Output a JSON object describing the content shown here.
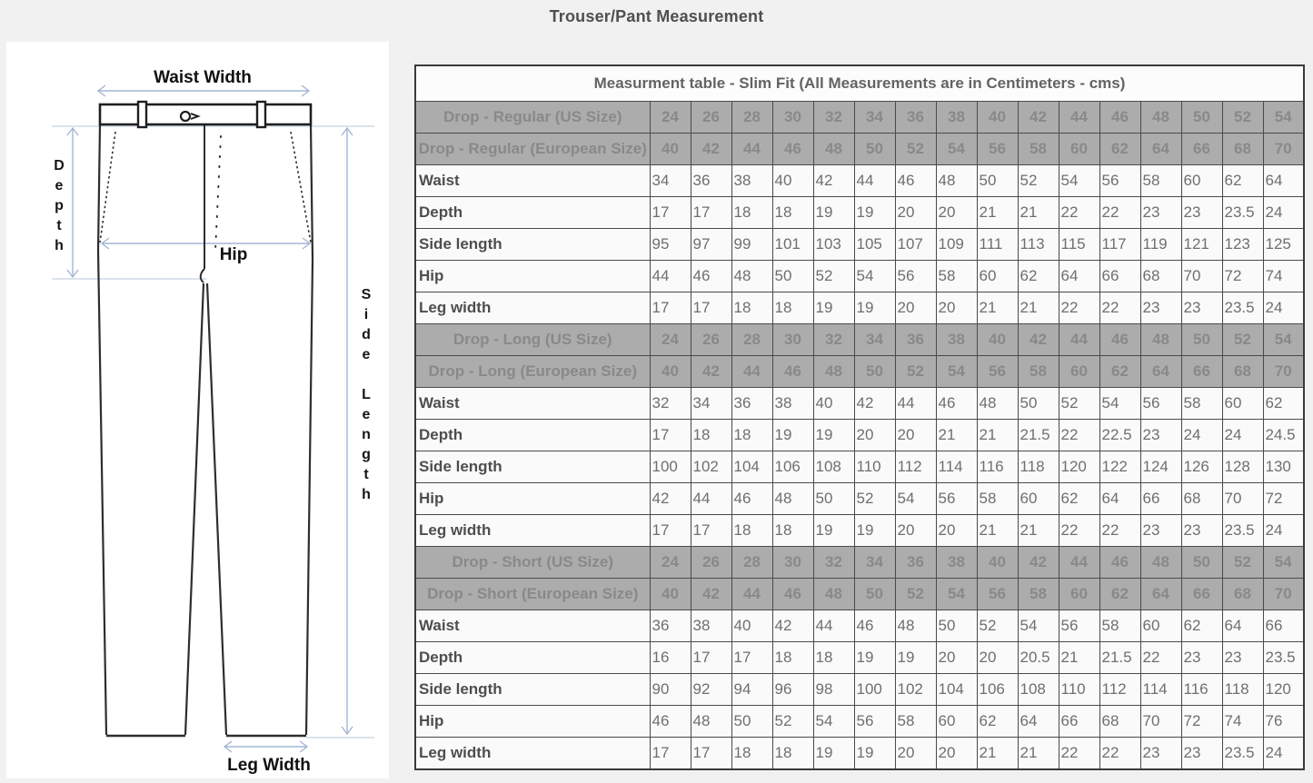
{
  "page": {
    "title": "Trouser/Pant Measurement"
  },
  "diagram": {
    "labels": {
      "waist_width": "Waist Width",
      "depth": "Depth",
      "hip": "Hip",
      "side_length": "Side Length",
      "leg_width": "Leg Width"
    }
  },
  "colors": {
    "arrow_accent": "#a4b6d4",
    "reference_line": "#c6d2e4",
    "header_gray": "#acacac",
    "page_background": "#f1f1f1",
    "panel_background": "#ffffff",
    "table_border": "#4a4a4a"
  },
  "table": {
    "title": "Measurment table - Slim Fit (All Measurements are in Centimeters - cms)",
    "sections": [
      {
        "us_label": "Drop - Regular (US Size)",
        "us_sizes": [
          24,
          26,
          28,
          30,
          32,
          34,
          36,
          38,
          40,
          42,
          44,
          46,
          48,
          50,
          52,
          54
        ],
        "eu_label": "Drop - Regular (European Size)",
        "eu_sizes": [
          40,
          42,
          44,
          46,
          48,
          50,
          52,
          54,
          56,
          58,
          60,
          62,
          64,
          66,
          68,
          70
        ],
        "rows": [
          {
            "label": "Waist",
            "values": [
              34,
              36,
              38,
              40,
              42,
              44,
              46,
              48,
              50,
              52,
              54,
              56,
              58,
              60,
              62,
              64
            ]
          },
          {
            "label": "Depth",
            "values": [
              17,
              17,
              18,
              18,
              19,
              19,
              20,
              20,
              21,
              21,
              22,
              22,
              23,
              23,
              23.5,
              24
            ]
          },
          {
            "label": "Side length",
            "values": [
              95,
              97,
              99,
              101,
              103,
              105,
              107,
              109,
              111,
              113,
              115,
              117,
              119,
              121,
              123,
              125
            ]
          },
          {
            "label": "Hip",
            "values": [
              44,
              46,
              48,
              50,
              52,
              54,
              56,
              58,
              60,
              62,
              64,
              66,
              68,
              70,
              72,
              74
            ]
          },
          {
            "label": "Leg width",
            "values": [
              17,
              17,
              18,
              18,
              19,
              19,
              20,
              20,
              21,
              21,
              22,
              22,
              23,
              23,
              23.5,
              24
            ]
          }
        ]
      },
      {
        "us_label": "Drop - Long (US Size)",
        "us_sizes": [
          24,
          26,
          28,
          30,
          32,
          34,
          36,
          38,
          40,
          42,
          44,
          46,
          48,
          50,
          52,
          54
        ],
        "eu_label": "Drop - Long (European Size)",
        "eu_sizes": [
          40,
          42,
          44,
          46,
          48,
          50,
          52,
          54,
          56,
          58,
          60,
          62,
          64,
          66,
          68,
          70
        ],
        "rows": [
          {
            "label": "Waist",
            "values": [
              32,
              34,
              36,
              38,
              40,
              42,
              44,
              46,
              48,
              50,
              52,
              54,
              56,
              58,
              60,
              62
            ]
          },
          {
            "label": "Depth",
            "values": [
              17,
              18,
              18,
              19,
              19,
              20,
              20,
              21,
              21,
              21.5,
              22,
              22.5,
              23,
              24,
              24,
              24.5
            ]
          },
          {
            "label": "Side length",
            "values": [
              100,
              102,
              104,
              106,
              108,
              110,
              112,
              114,
              116,
              118,
              120,
              122,
              124,
              126,
              128,
              130
            ]
          },
          {
            "label": "Hip",
            "values": [
              42,
              44,
              46,
              48,
              50,
              52,
              54,
              56,
              58,
              60,
              62,
              64,
              66,
              68,
              70,
              72
            ]
          },
          {
            "label": "Leg width",
            "values": [
              17,
              17,
              18,
              18,
              19,
              19,
              20,
              20,
              21,
              21,
              22,
              22,
              23,
              23,
              23.5,
              24
            ]
          }
        ]
      },
      {
        "us_label": "Drop - Short (US Size)",
        "us_sizes": [
          24,
          26,
          28,
          30,
          32,
          34,
          36,
          38,
          40,
          42,
          44,
          46,
          48,
          50,
          52,
          54
        ],
        "eu_label": "Drop - Short (European Size)",
        "eu_sizes": [
          40,
          42,
          44,
          46,
          48,
          50,
          52,
          54,
          56,
          58,
          60,
          62,
          64,
          66,
          68,
          70
        ],
        "rows": [
          {
            "label": "Waist",
            "values": [
              36,
              38,
              40,
              42,
              44,
              46,
              48,
              50,
              52,
              54,
              56,
              58,
              60,
              62,
              64,
              66
            ]
          },
          {
            "label": "Depth",
            "values": [
              16,
              17,
              17,
              18,
              18,
              19,
              19,
              20,
              20,
              20.5,
              21,
              21.5,
              22,
              23,
              23,
              23.5
            ]
          },
          {
            "label": "Side length",
            "values": [
              90,
              92,
              94,
              96,
              98,
              100,
              102,
              104,
              106,
              108,
              110,
              112,
              114,
              116,
              118,
              120
            ]
          },
          {
            "label": "Hip",
            "values": [
              46,
              48,
              50,
              52,
              54,
              56,
              58,
              60,
              62,
              64,
              66,
              68,
              70,
              72,
              74,
              76
            ]
          },
          {
            "label": "Leg width",
            "values": [
              17,
              17,
              18,
              18,
              19,
              19,
              20,
              20,
              21,
              21,
              22,
              22,
              23,
              23,
              23.5,
              24
            ]
          }
        ]
      }
    ]
  }
}
